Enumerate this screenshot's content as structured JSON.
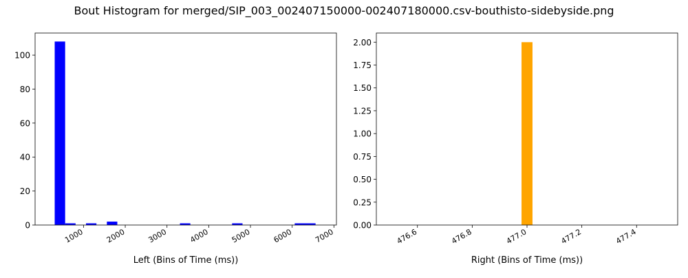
{
  "suptitle": "Bout Histogram for merged/SIP_003_002407150000-002407180000.csv-bouthisto-sidebyside.png",
  "chart_data": [
    {
      "type": "bar",
      "xlabel": "Left (Bins of Time (ms))",
      "ylabel": "",
      "xlim": [
        -160,
        7060
      ],
      "ylim": [
        0,
        113
      ],
      "xticks": [
        1000,
        2000,
        3000,
        4000,
        5000,
        6000,
        7000
      ],
      "xtick_labels": [
        "1000",
        "2000",
        "3000",
        "4000",
        "5000",
        "6000",
        "7000"
      ],
      "yticks": [
        0,
        20,
        40,
        60,
        80,
        100
      ],
      "ytick_labels": [
        "0",
        "20",
        "40",
        "60",
        "80",
        "100"
      ],
      "color": "#0000ff",
      "bars": [
        {
          "x0": 310,
          "x1": 560,
          "value": 108
        },
        {
          "x0": 560,
          "x1": 810,
          "value": 1
        },
        {
          "x0": 1060,
          "x1": 1310,
          "value": 1
        },
        {
          "x0": 1560,
          "x1": 1810,
          "value": 2
        },
        {
          "x0": 3310,
          "x1": 3560,
          "value": 1
        },
        {
          "x0": 4560,
          "x1": 4810,
          "value": 1
        },
        {
          "x0": 6060,
          "x1": 6310,
          "value": 1
        },
        {
          "x0": 6310,
          "x1": 6560,
          "value": 1
        }
      ]
    },
    {
      "type": "bar",
      "xlabel": "Right (Bins of Time (ms))",
      "ylabel": "",
      "xlim": [
        476.45,
        477.55
      ],
      "ylim": [
        0,
        2.1
      ],
      "xticks": [
        476.6,
        476.8,
        477.0,
        477.2,
        477.4
      ],
      "xtick_labels": [
        "476.6",
        "476.8",
        "477.0",
        "477.2",
        "477.4"
      ],
      "yticks": [
        0,
        0.25,
        0.5,
        0.75,
        1.0,
        1.25,
        1.5,
        1.75,
        2.0
      ],
      "ytick_labels": [
        "0.00",
        "0.25",
        "0.50",
        "0.75",
        "1.00",
        "1.25",
        "1.50",
        "1.75",
        "2.00"
      ],
      "color": "#ffa500",
      "bars": [
        {
          "x0": 476.98,
          "x1": 477.02,
          "value": 2
        }
      ]
    }
  ]
}
